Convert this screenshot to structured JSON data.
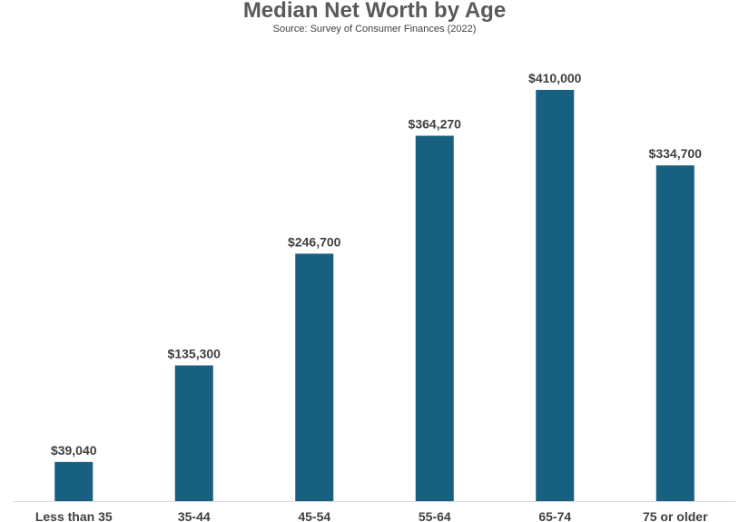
{
  "chart_data": {
    "type": "bar",
    "title": "Median Net Worth by Age",
    "subtitle": "Source: Survey of Consumer Finances (2022)",
    "categories": [
      "Less than 35",
      "35-44",
      "45-54",
      "55-64",
      "65-74",
      "75 or older"
    ],
    "values": [
      39040,
      135300,
      246700,
      364270,
      410000,
      334700
    ],
    "data_labels": [
      "$39,040",
      "$135,300",
      "$246,700",
      "$364,270",
      "$410,000",
      "$334,700"
    ],
    "xlabel": "",
    "ylabel": "",
    "ylim": [
      0,
      410000
    ],
    "grid": false,
    "legend": "none",
    "bar_color": "#17607f",
    "label_color": "#404040"
  }
}
